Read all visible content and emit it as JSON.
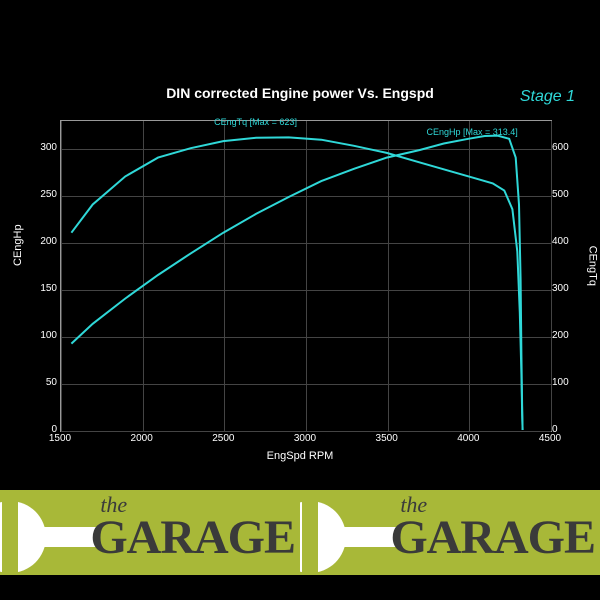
{
  "title": "DIN corrected Engine power Vs. Engspd",
  "stage_label": "Stage 1",
  "chart": {
    "type": "line",
    "background_color": "#000000",
    "grid_color": "#444444",
    "line_color": "#2fd8d8",
    "text_color": "#ffffff",
    "x_axis": {
      "label": "EngSpd RPM",
      "min": 1500,
      "max": 4500,
      "tick_step": 500,
      "ticks": [
        1500,
        2000,
        2500,
        3000,
        3500,
        4000,
        4500
      ]
    },
    "y_axis_left": {
      "label": "CEngHp",
      "min": 0,
      "max": 330,
      "ticks": [
        0,
        50,
        100,
        150,
        200,
        250,
        300
      ]
    },
    "y_axis_right": {
      "label": "CEngTq",
      "min": 0,
      "max": 660,
      "ticks": [
        0,
        100,
        200,
        300,
        400,
        500,
        600
      ]
    },
    "series": [
      {
        "name": "CEngHp",
        "axis": "left",
        "label": "CEngHp [Max = 313.4]",
        "label_x": 4050,
        "label_y": 310,
        "data": [
          [
            1570,
            92
          ],
          [
            1700,
            113
          ],
          [
            1900,
            140
          ],
          [
            2100,
            165
          ],
          [
            2300,
            188
          ],
          [
            2500,
            210
          ],
          [
            2700,
            230
          ],
          [
            2900,
            248
          ],
          [
            3100,
            265
          ],
          [
            3300,
            278
          ],
          [
            3500,
            290
          ],
          [
            3700,
            298
          ],
          [
            3850,
            305
          ],
          [
            4000,
            310
          ],
          [
            4100,
            313
          ],
          [
            4180,
            313.4
          ],
          [
            4250,
            310
          ],
          [
            4290,
            290
          ],
          [
            4310,
            240
          ],
          [
            4320,
            160
          ],
          [
            4325,
            80
          ],
          [
            4330,
            20
          ],
          [
            4332,
            0
          ]
        ]
      },
      {
        "name": "CEngTq",
        "axis": "right",
        "label": "CEngTq [Max = 623]",
        "label_x": 2750,
        "label_y_right": 640,
        "data": [
          [
            1570,
            420
          ],
          [
            1700,
            480
          ],
          [
            1900,
            540
          ],
          [
            2100,
            580
          ],
          [
            2300,
            600
          ],
          [
            2500,
            615
          ],
          [
            2700,
            622
          ],
          [
            2900,
            623
          ],
          [
            3100,
            618
          ],
          [
            3300,
            605
          ],
          [
            3500,
            590
          ],
          [
            3700,
            570
          ],
          [
            3900,
            550
          ],
          [
            4050,
            535
          ],
          [
            4150,
            525
          ],
          [
            4220,
            510
          ],
          [
            4270,
            470
          ],
          [
            4300,
            380
          ],
          [
            4315,
            250
          ],
          [
            4325,
            120
          ],
          [
            4330,
            30
          ],
          [
            4332,
            0
          ]
        ]
      }
    ]
  },
  "banner": {
    "background_color": "#a8b838",
    "text_color": "#3a3a3a",
    "the_text": "the",
    "garage_text": "GARAGE"
  }
}
